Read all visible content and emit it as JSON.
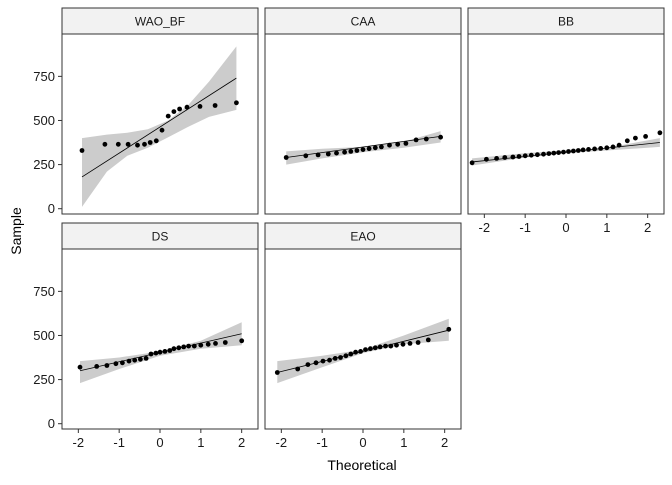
{
  "chart_data": {
    "type": "scatter",
    "subtype": "faceted normal Q-Q plot with reference line and confidence band",
    "xlabel": "Theoretical",
    "ylabel": "Sample",
    "x_ticks": [
      -2,
      -1,
      0,
      1,
      2
    ],
    "y_ticks": [
      0,
      250,
      500,
      750
    ],
    "xlim": [
      -2.4,
      2.4
    ],
    "ylim": [
      -30,
      990
    ],
    "grid": false,
    "colors": {
      "points": "#000000",
      "line": "#000000",
      "band": "#cccccc",
      "strip": "#f2f2f2",
      "panel_border": "#333333"
    },
    "facets": [
      {
        "name": "WAO_BF",
        "points": [
          [
            -1.91,
            330
          ],
          [
            -1.35,
            365
          ],
          [
            -1.02,
            365
          ],
          [
            -0.78,
            365
          ],
          [
            -0.55,
            360
          ],
          [
            -0.38,
            365
          ],
          [
            -0.24,
            375
          ],
          [
            -0.09,
            385
          ],
          [
            0.05,
            445
          ],
          [
            0.2,
            525
          ],
          [
            0.34,
            550
          ],
          [
            0.48,
            565
          ],
          [
            0.66,
            575
          ],
          [
            0.98,
            580
          ],
          [
            1.35,
            585
          ],
          [
            1.87,
            600
          ]
        ],
        "line": [
          [
            -1.91,
            180
          ],
          [
            1.87,
            740
          ]
        ],
        "band": {
          "x": [
            -1.91,
            -1.3,
            -0.8,
            -0.3,
            0.2,
            0.7,
            1.2,
            1.87
          ],
          "lower": [
            10,
            210,
            300,
            345,
            405,
            465,
            520,
            560
          ],
          "upper": [
            400,
            420,
            430,
            450,
            500,
            590,
            720,
            920
          ]
        }
      },
      {
        "name": "CAA",
        "points": [
          [
            -1.88,
            290
          ],
          [
            -1.4,
            300
          ],
          [
            -1.1,
            305
          ],
          [
            -0.85,
            310
          ],
          [
            -0.65,
            315
          ],
          [
            -0.45,
            320
          ],
          [
            -0.3,
            325
          ],
          [
            -0.15,
            330
          ],
          [
            0.0,
            335
          ],
          [
            0.15,
            340
          ],
          [
            0.3,
            345
          ],
          [
            0.45,
            350
          ],
          [
            0.65,
            360
          ],
          [
            0.85,
            365
          ],
          [
            1.05,
            370
          ],
          [
            1.3,
            390
          ],
          [
            1.55,
            395
          ],
          [
            1.9,
            405
          ]
        ],
        "line": [
          [
            -1.88,
            290
          ],
          [
            1.9,
            410
          ]
        ],
        "band": {
          "x": [
            -1.88,
            -1.0,
            0.0,
            1.0,
            1.9
          ],
          "lower": [
            250,
            285,
            320,
            345,
            375
          ],
          "upper": [
            325,
            340,
            350,
            380,
            440
          ]
        }
      },
      {
        "name": "BB",
        "points": [
          [
            -2.3,
            260
          ],
          [
            -1.95,
            280
          ],
          [
            -1.7,
            285
          ],
          [
            -1.5,
            290
          ],
          [
            -1.3,
            293
          ],
          [
            -1.15,
            296
          ],
          [
            -1.0,
            300
          ],
          [
            -0.85,
            303
          ],
          [
            -0.7,
            306
          ],
          [
            -0.55,
            309
          ],
          [
            -0.42,
            312
          ],
          [
            -0.3,
            315
          ],
          [
            -0.18,
            318
          ],
          [
            -0.06,
            321
          ],
          [
            0.06,
            324
          ],
          [
            0.18,
            327
          ],
          [
            0.3,
            330
          ],
          [
            0.42,
            333
          ],
          [
            0.55,
            336
          ],
          [
            0.7,
            339
          ],
          [
            0.85,
            342
          ],
          [
            1.0,
            345
          ],
          [
            1.15,
            350
          ],
          [
            1.3,
            360
          ],
          [
            1.5,
            385
          ],
          [
            1.7,
            400
          ],
          [
            1.95,
            410
          ],
          [
            2.3,
            430
          ]
        ],
        "line": [
          [
            -2.3,
            265
          ],
          [
            2.3,
            375
          ]
        ],
        "band": {
          "x": [
            -2.3,
            -1.0,
            0.0,
            1.0,
            2.3
          ],
          "lower": [
            245,
            290,
            315,
            330,
            350
          ],
          "upper": [
            285,
            315,
            330,
            345,
            400
          ]
        }
      },
      {
        "name": "DS",
        "points": [
          [
            -1.96,
            320
          ],
          [
            -1.55,
            325
          ],
          [
            -1.3,
            330
          ],
          [
            -1.08,
            340
          ],
          [
            -0.92,
            345
          ],
          [
            -0.76,
            355
          ],
          [
            -0.62,
            360
          ],
          [
            -0.48,
            365
          ],
          [
            -0.34,
            370
          ],
          [
            -0.22,
            395
          ],
          [
            -0.1,
            400
          ],
          [
            0.0,
            405
          ],
          [
            0.12,
            410
          ],
          [
            0.24,
            415
          ],
          [
            0.34,
            425
          ],
          [
            0.46,
            430
          ],
          [
            0.58,
            435
          ],
          [
            0.7,
            440
          ],
          [
            0.84,
            440
          ],
          [
            1.0,
            445
          ],
          [
            1.18,
            450
          ],
          [
            1.36,
            455
          ],
          [
            1.6,
            460
          ],
          [
            2.0,
            470
          ]
        ],
        "line": [
          [
            -1.96,
            300
          ],
          [
            2.0,
            510
          ]
        ],
        "band": {
          "x": [
            -1.96,
            -1.0,
            0.0,
            1.0,
            2.0
          ],
          "lower": [
            230,
            310,
            385,
            425,
            445
          ],
          "upper": [
            355,
            375,
            410,
            470,
            575
          ]
        }
      },
      {
        "name": "EAO",
        "points": [
          [
            -2.1,
            290
          ],
          [
            -1.6,
            310
          ],
          [
            -1.35,
            335
          ],
          [
            -1.15,
            345
          ],
          [
            -0.98,
            355
          ],
          [
            -0.82,
            360
          ],
          [
            -0.68,
            370
          ],
          [
            -0.55,
            375
          ],
          [
            -0.42,
            385
          ],
          [
            -0.3,
            395
          ],
          [
            -0.18,
            405
          ],
          [
            -0.06,
            410
          ],
          [
            0.06,
            420
          ],
          [
            0.18,
            425
          ],
          [
            0.3,
            430
          ],
          [
            0.42,
            435
          ],
          [
            0.55,
            440
          ],
          [
            0.68,
            440
          ],
          [
            0.82,
            445
          ],
          [
            0.98,
            450
          ],
          [
            1.15,
            455
          ],
          [
            1.35,
            460
          ],
          [
            1.6,
            475
          ],
          [
            2.1,
            535
          ]
        ],
        "line": [
          [
            -2.1,
            290
          ],
          [
            2.1,
            530
          ]
        ],
        "band": {
          "x": [
            -2.1,
            -1.0,
            0.0,
            1.0,
            2.1
          ],
          "lower": [
            230,
            320,
            400,
            450,
            470
          ],
          "upper": [
            355,
            385,
            420,
            500,
            595
          ]
        }
      }
    ]
  }
}
